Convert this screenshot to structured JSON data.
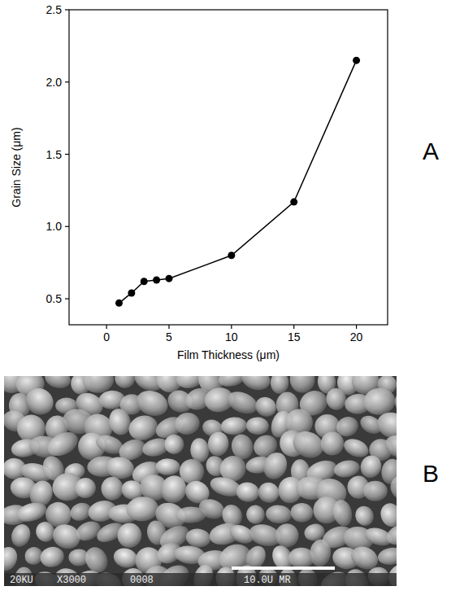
{
  "chart_data": {
    "type": "line",
    "x": [
      1,
      2,
      3,
      4,
      5,
      10,
      15,
      20
    ],
    "values": [
      0.47,
      0.54,
      0.62,
      0.63,
      0.64,
      0.8,
      1.17,
      2.15
    ],
    "x_label": "Film Thickness (μm)",
    "y_label": "Grain Size (μm)",
    "xlim": [
      -3,
      22.5
    ],
    "ylim": [
      0.32,
      2.5
    ],
    "xticks": [
      0,
      5,
      10,
      15,
      20
    ],
    "yticks": [
      0.5,
      {
        "value": 1,
        "label": "1.0"
      },
      1.5,
      {
        "value": 2,
        "label": "2.0"
      },
      2.5
    ],
    "color": "#000000",
    "marker": "circle",
    "line_style": "solid",
    "grid": false
  },
  "panel_labels": [
    "A",
    "B"
  ],
  "micrograph": {
    "caption_parts": [
      "20KU",
      "X3000",
      "0008",
      "10.0U MR"
    ]
  }
}
